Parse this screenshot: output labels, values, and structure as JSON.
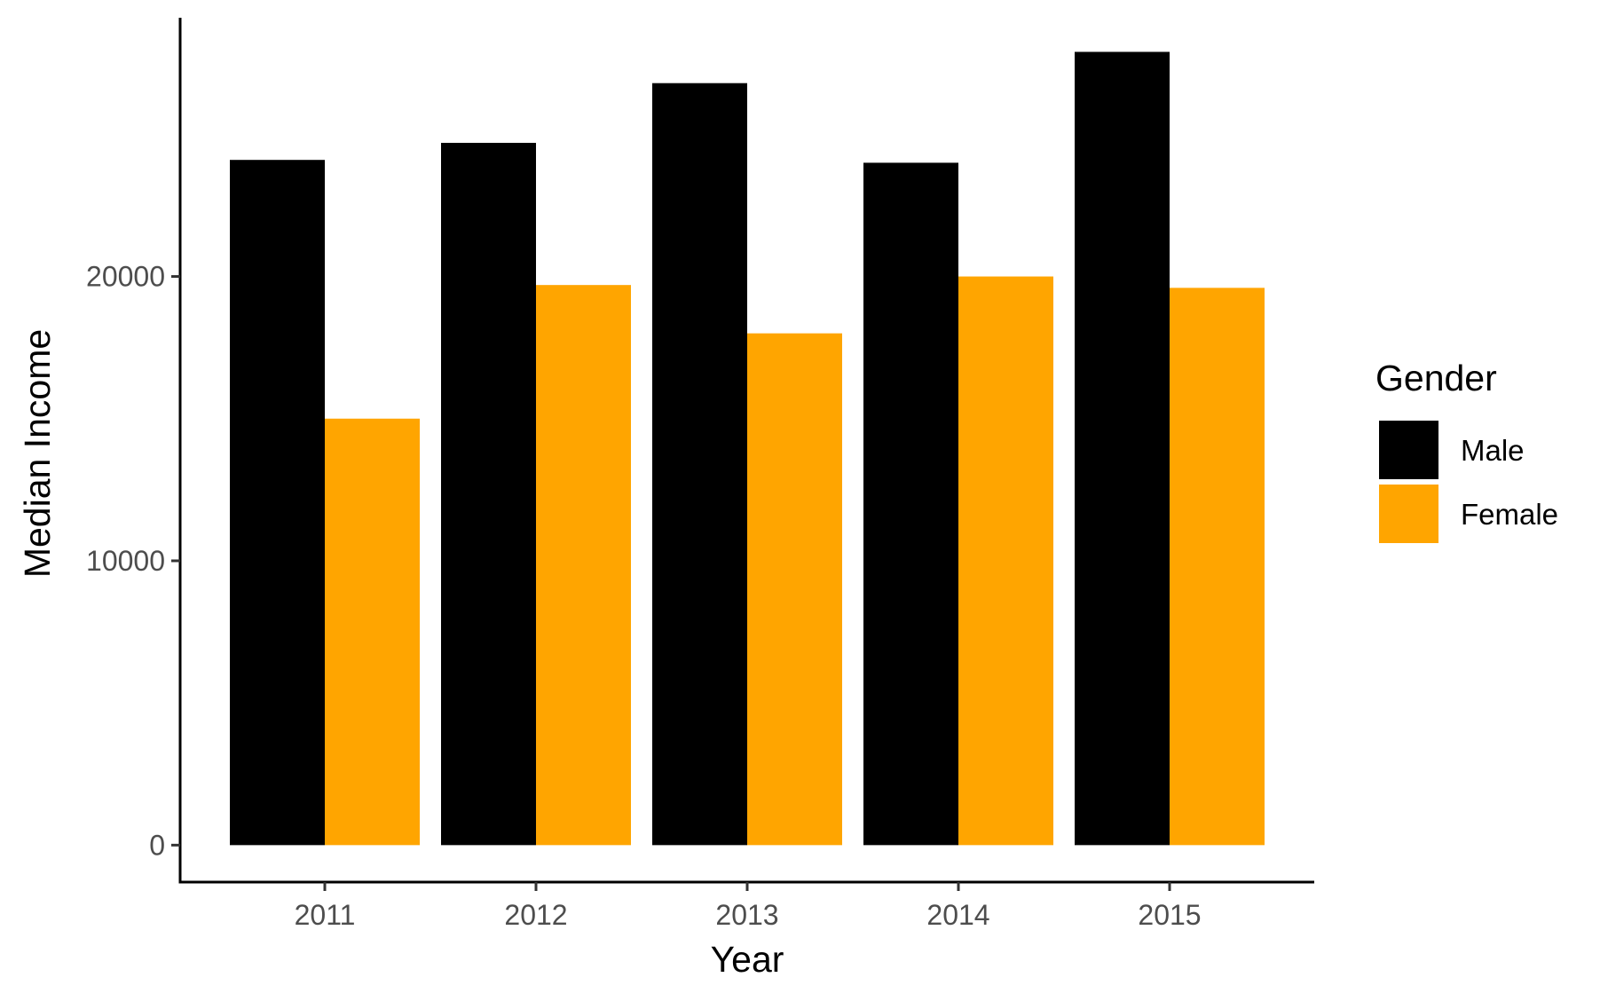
{
  "chart_data": {
    "type": "bar",
    "categories": [
      "2011",
      "2012",
      "2013",
      "2014",
      "2015"
    ],
    "series": [
      {
        "name": "Male",
        "color": "#000000",
        "values": [
          24100,
          24700,
          26800,
          24000,
          27900
        ]
      },
      {
        "name": "Female",
        "color": "#FFA500",
        "values": [
          15000,
          19700,
          18000,
          20000,
          19600
        ]
      }
    ],
    "xlabel": "Year",
    "ylabel": "Median Income",
    "ylim": [
      -1300,
      29100
    ],
    "yticks": [
      0,
      10000,
      20000
    ],
    "ytick_labels": [
      "0",
      "10000",
      "20000"
    ],
    "grid": false,
    "legend": {
      "title": "Gender",
      "position": "right"
    }
  }
}
